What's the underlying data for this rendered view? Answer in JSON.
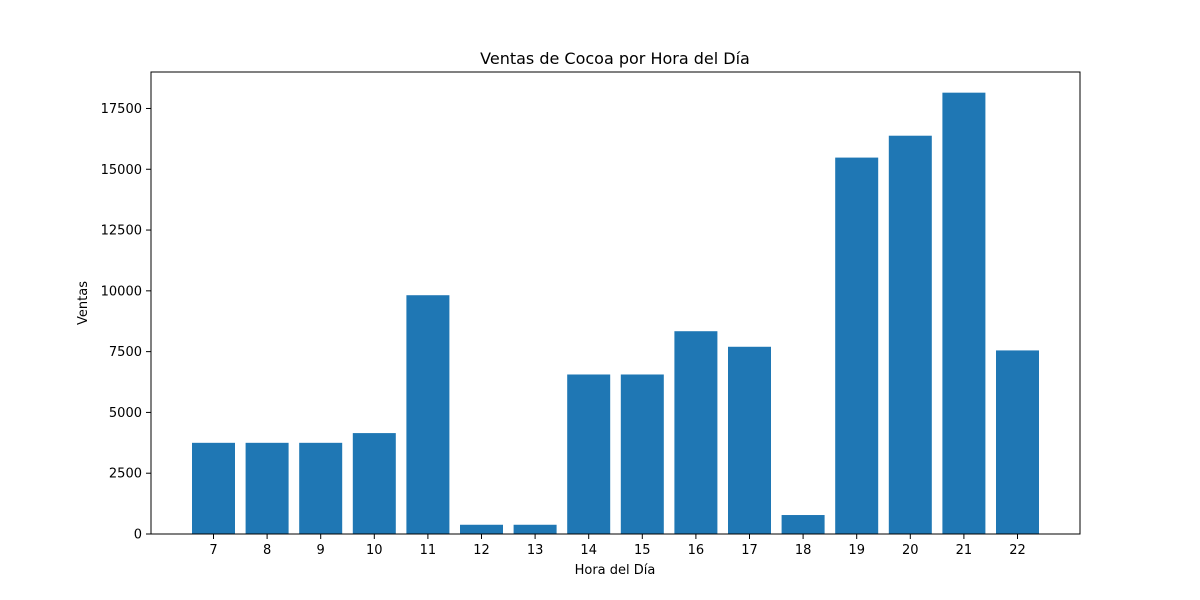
{
  "chart_data": {
    "type": "bar",
    "title": "Ventas de Cocoa por Hora del Día",
    "xlabel": "Hora del Día",
    "ylabel": "Ventas",
    "categories": [
      "7",
      "8",
      "9",
      "10",
      "11",
      "12",
      "13",
      "14",
      "15",
      "16",
      "17",
      "18",
      "19",
      "20",
      "21",
      "22"
    ],
    "values": [
      3750,
      3750,
      3750,
      4150,
      9820,
      380,
      380,
      6560,
      6560,
      8340,
      7700,
      780,
      15480,
      16380,
      18150,
      7550
    ],
    "ylim": [
      0,
      19000
    ],
    "yticks": [
      0,
      2500,
      5000,
      7500,
      10000,
      12500,
      15000,
      17500
    ],
    "ytick_labels": [
      "0",
      "2500",
      "5000",
      "7500",
      "10000",
      "12500",
      "15000",
      "17500"
    ],
    "grid": false,
    "legend": "none",
    "bar_color": "#1f77b4"
  }
}
